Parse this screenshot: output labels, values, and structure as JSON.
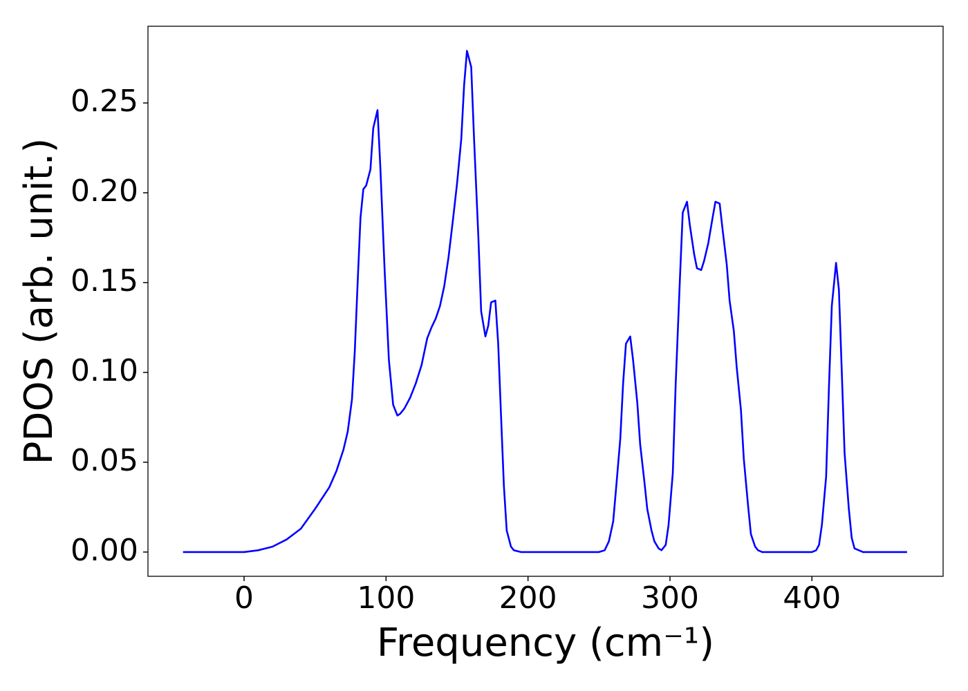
{
  "chart_data": {
    "type": "line",
    "xlabel": "Frequency (cm⁻¹)",
    "ylabel": "PDOS (arb. unit.)",
    "color": "#0000ff",
    "x": [
      -43,
      0,
      10,
      20,
      30,
      40,
      50,
      60,
      65,
      70,
      73,
      76,
      78,
      80,
      82,
      84,
      86,
      89,
      91,
      94,
      96,
      99,
      102,
      105,
      108,
      110,
      113,
      117,
      121,
      125,
      129,
      132,
      135,
      138,
      141,
      144,
      147,
      150,
      153,
      155,
      157,
      160,
      162,
      165,
      167,
      170,
      172,
      174,
      177,
      179,
      181,
      183,
      185,
      188,
      190,
      195,
      250,
      254,
      257,
      260,
      262,
      265,
      267,
      269,
      272,
      274,
      277,
      279,
      282,
      284,
      287,
      289,
      292,
      294,
      297,
      299,
      302,
      304,
      307,
      309,
      312,
      314,
      317,
      319,
      322,
      324,
      327,
      330,
      332,
      335,
      337,
      340,
      342,
      345,
      347,
      350,
      352,
      355,
      357,
      360,
      362,
      365,
      400,
      403,
      405,
      407,
      410,
      412,
      414,
      417,
      419,
      421,
      423,
      426,
      428,
      430,
      433,
      436,
      467
    ],
    "values": [
      0,
      0,
      0.001,
      0.003,
      0.007,
      0.013,
      0.024,
      0.036,
      0.045,
      0.057,
      0.067,
      0.085,
      0.112,
      0.15,
      0.186,
      0.202,
      0.204,
      0.213,
      0.236,
      0.246,
      0.214,
      0.157,
      0.107,
      0.082,
      0.076,
      0.077,
      0.08,
      0.086,
      0.094,
      0.104,
      0.119,
      0.125,
      0.13,
      0.137,
      0.148,
      0.164,
      0.184,
      0.205,
      0.23,
      0.26,
      0.279,
      0.27,
      0.23,
      0.176,
      0.134,
      0.12,
      0.126,
      0.139,
      0.14,
      0.116,
      0.076,
      0.037,
      0.012,
      0.003,
      0.001,
      0,
      0,
      0.001,
      0.006,
      0.017,
      0.035,
      0.063,
      0.094,
      0.116,
      0.12,
      0.107,
      0.083,
      0.06,
      0.039,
      0.024,
      0.012,
      0.006,
      0.002,
      0.001,
      0.004,
      0.015,
      0.044,
      0.093,
      0.152,
      0.189,
      0.195,
      0.182,
      0.166,
      0.158,
      0.157,
      0.162,
      0.172,
      0.186,
      0.195,
      0.194,
      0.18,
      0.16,
      0.14,
      0.123,
      0.103,
      0.079,
      0.052,
      0.026,
      0.01,
      0.003,
      0.001,
      0,
      0,
      0.001,
      0.004,
      0.015,
      0.042,
      0.092,
      0.137,
      0.161,
      0.146,
      0.101,
      0.055,
      0.024,
      0.008,
      0.002,
      0.001,
      0,
      0
    ],
    "xlim": [
      -67.7,
      492.4
    ],
    "ylim": [
      -0.0135,
      0.2927
    ],
    "xticks": [
      0,
      100,
      200,
      300,
      400
    ],
    "yticks": [
      {
        "value": 0,
        "label": "0.00"
      },
      {
        "value": 0.05,
        "label": "0.05"
      },
      {
        "value": 0.1,
        "label": "0.10"
      },
      {
        "value": 0.15,
        "label": "0.15"
      },
      {
        "value": 0.2,
        "label": "0.20"
      },
      {
        "value": 0.25,
        "label": "0.25"
      }
    ],
    "grid": false
  }
}
